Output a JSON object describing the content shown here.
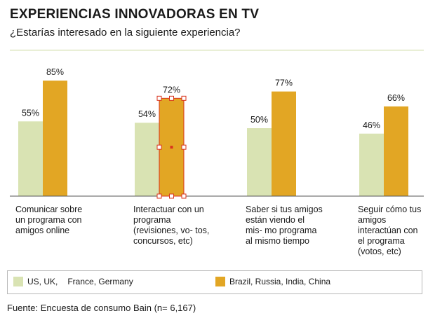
{
  "header": {
    "title": "EXPERIENCIAS INNOVADORAS EN TV",
    "subtitle": "¿Estarías interesado en la siguiente experiencia?"
  },
  "colors": {
    "series_1": "#d9e3b3",
    "series_2": "#e2a624",
    "rule": "#c9d89a",
    "selection": "#d9331e"
  },
  "chart_data": {
    "type": "bar",
    "title": "EXPERIENCIAS INNOVADORAS EN TV",
    "subtitle": "¿Estarías interesado en la siguiente experiencia?",
    "categories": [
      "Comunicar sobre un programa con amigos online",
      "Interactuar con un programa (revisiones, vo- tos, concursos, etc)",
      "Saber si tus amigos están viendo el mis- mo programa al mismo tiempo",
      "Seguir cómo tus amigos interactúan con el programa (votos, etc)"
    ],
    "series": [
      {
        "name": "US, UK, France, Germany",
        "values": [
          55,
          54,
          50,
          46
        ],
        "labels": [
          "55%",
          "54%",
          "50%",
          "46%"
        ]
      },
      {
        "name": "Brazil, Russia, India, China",
        "values": [
          85,
          72,
          77,
          66
        ],
        "labels": [
          "85%",
          "72%",
          "77%",
          "66%"
        ]
      }
    ],
    "ylim": [
      0,
      100
    ],
    "grid": false,
    "legend": "bottom",
    "xlabel": "",
    "ylabel": ""
  },
  "legend": {
    "series_1_part1": "US, UK,",
    "series_1_part2": "France, Germany",
    "series_2": "Brazil, Russia, India, China"
  },
  "footer": "Fuente: Encuesta de consumo Bain (n= 6,167)"
}
